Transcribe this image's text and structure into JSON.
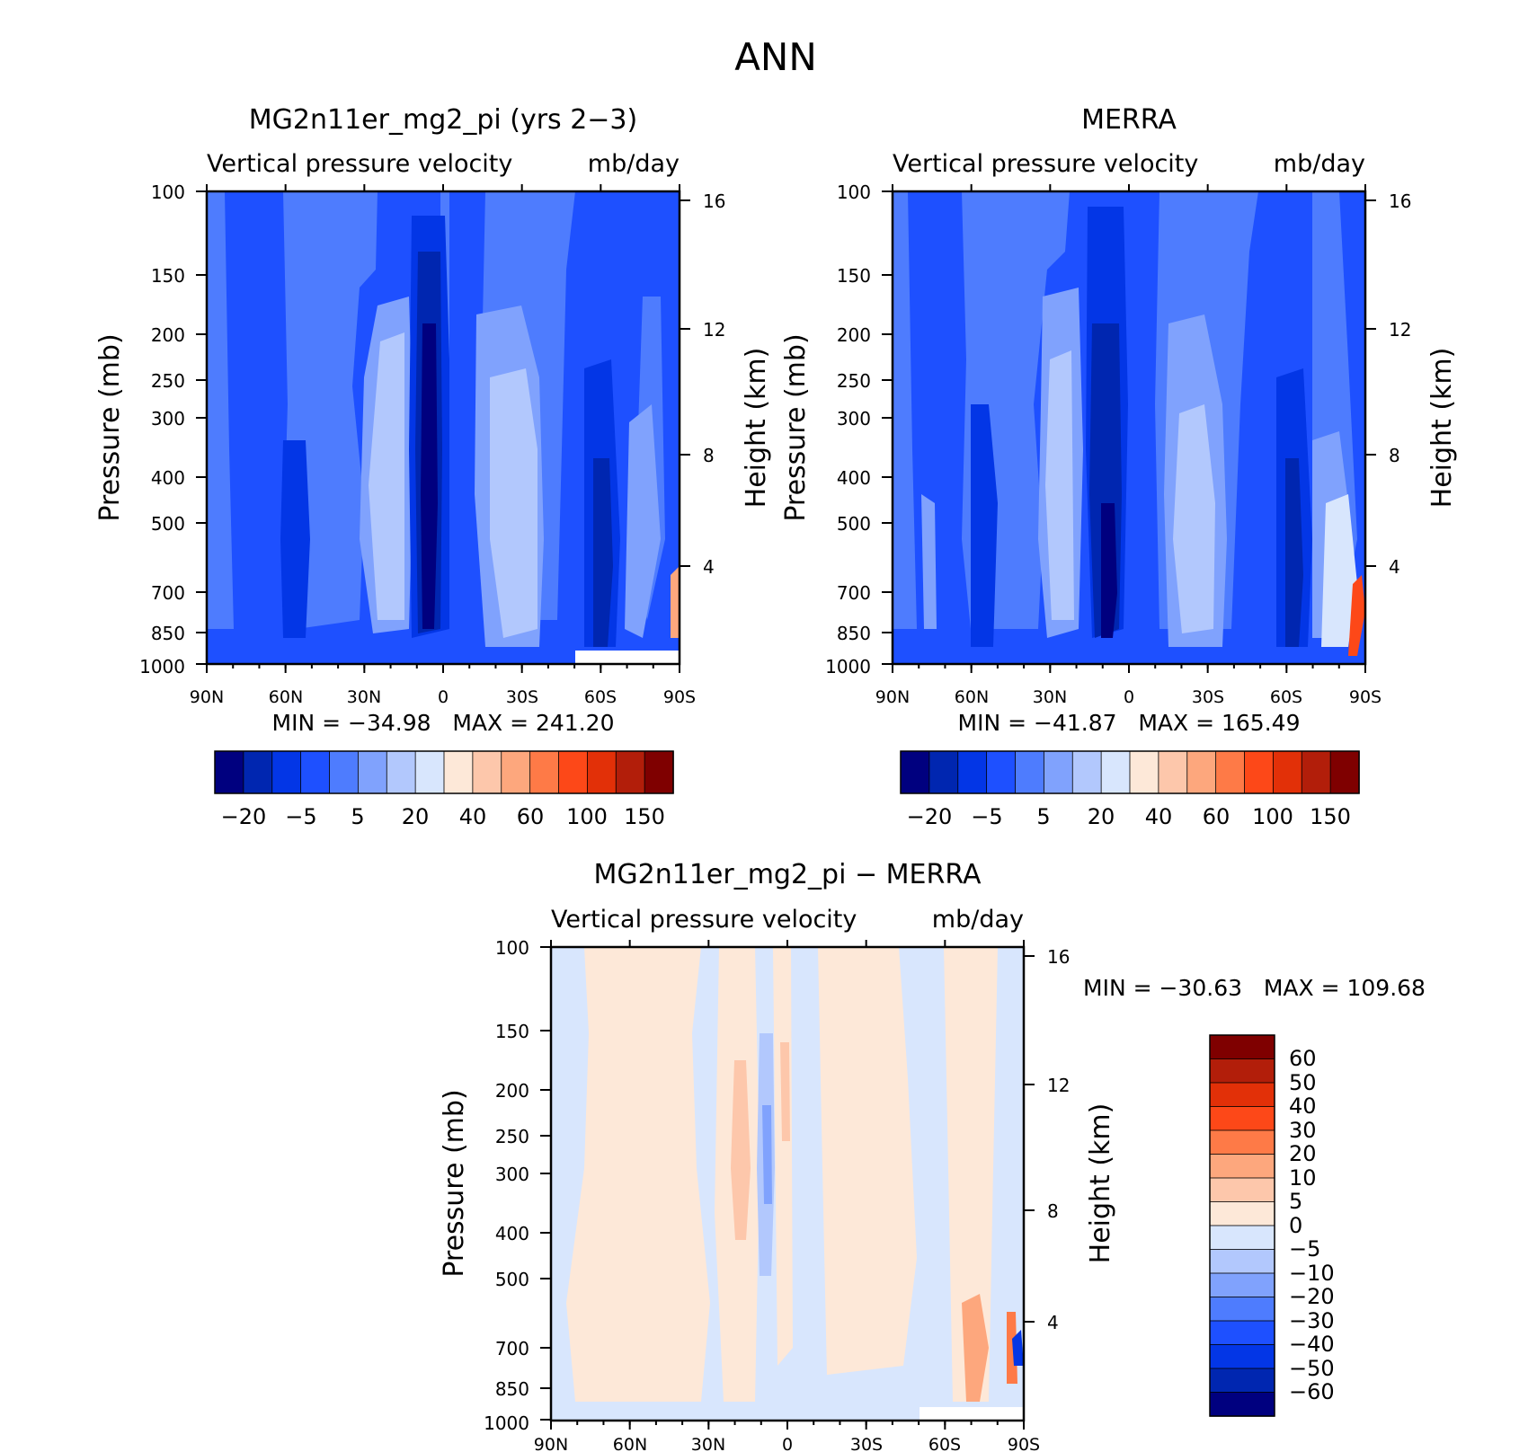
{
  "main_title": "ANN",
  "chart_data": [
    {
      "type": "heatmap",
      "title": "MG2n11er_mg2_pi (yrs 2−3)",
      "subtitle_left": "Vertical pressure velocity",
      "subtitle_right": "mb/day",
      "ylabel": "Pressure (mb)",
      "y2label": "Height (km)",
      "x_ticks": [
        "90N",
        "60N",
        "30N",
        "0",
        "30S",
        "60S",
        "90S"
      ],
      "y_ticks": [
        "100",
        "150",
        "200",
        "250",
        "300",
        "400",
        "500",
        "700",
        "850",
        "1000"
      ],
      "y2_ticks": [
        "16",
        "12",
        "8",
        "4"
      ],
      "ylim": [
        1000,
        100
      ],
      "minmax": "MIN = −34.98   MAX = 241.20",
      "min": -34.98,
      "max": 241.2,
      "colorbar_labels": [
        "−20",
        "−5",
        "5",
        "20",
        "40",
        "60",
        "100",
        "150"
      ],
      "levels": [
        -40,
        -30,
        -20,
        -10,
        -5,
        0,
        5,
        10,
        20,
        30,
        40,
        50,
        60,
        80,
        100,
        150
      ]
    },
    {
      "type": "heatmap",
      "title": "MERRA",
      "subtitle_left": "Vertical pressure velocity",
      "subtitle_right": "mb/day",
      "ylabel": "Pressure (mb)",
      "y2label": "Height (km)",
      "x_ticks": [
        "90N",
        "60N",
        "30N",
        "0",
        "30S",
        "60S",
        "90S"
      ],
      "y_ticks": [
        "100",
        "150",
        "200",
        "250",
        "300",
        "400",
        "500",
        "700",
        "850",
        "1000"
      ],
      "y2_ticks": [
        "16",
        "12",
        "8",
        "4"
      ],
      "ylim": [
        1000,
        100
      ],
      "minmax": "MIN = −41.87   MAX = 165.49",
      "min": -41.87,
      "max": 165.49,
      "colorbar_labels": [
        "−20",
        "−5",
        "5",
        "20",
        "40",
        "60",
        "100",
        "150"
      ],
      "levels": [
        -40,
        -30,
        -20,
        -10,
        -5,
        0,
        5,
        10,
        20,
        30,
        40,
        50,
        60,
        80,
        100,
        150
      ]
    },
    {
      "type": "heatmap",
      "title": "MG2n11er_mg2_pi − MERRA",
      "subtitle_left": "Vertical pressure velocity",
      "subtitle_right": "mb/day",
      "ylabel": "Pressure (mb)",
      "y2label": "Height (km)",
      "x_ticks": [
        "90N",
        "60N",
        "30N",
        "0",
        "30S",
        "60S",
        "90S"
      ],
      "y_ticks": [
        "100",
        "150",
        "200",
        "250",
        "300",
        "400",
        "500",
        "700",
        "850",
        "1000"
      ],
      "y2_ticks": [
        "16",
        "12",
        "8",
        "4"
      ],
      "ylim": [
        1000,
        100
      ],
      "minmax": "MIN = −30.63   MAX = 109.68",
      "min": -30.63,
      "max": 109.68,
      "colorbar_labels": [
        "60",
        "50",
        "40",
        "30",
        "20",
        "10",
        "5",
        "0",
        "−5",
        "−10",
        "−20",
        "−30",
        "−40",
        "−50",
        "−60"
      ],
      "levels": [
        60,
        50,
        40,
        30,
        20,
        10,
        5,
        0,
        -5,
        -10,
        -20,
        -30,
        -40,
        -50,
        -60
      ]
    }
  ],
  "palette": [
    "#00007f",
    "#0026b0",
    "#0336e6",
    "#1e50ff",
    "#4e7cfe",
    "#80a2fd",
    "#b2c8fd",
    "#d8e6fd",
    "#fde8d8",
    "#fdc7ab",
    "#fda77d",
    "#fe7a47",
    "#fd4818",
    "#e23008",
    "#b21e0a",
    "#7f0000"
  ]
}
